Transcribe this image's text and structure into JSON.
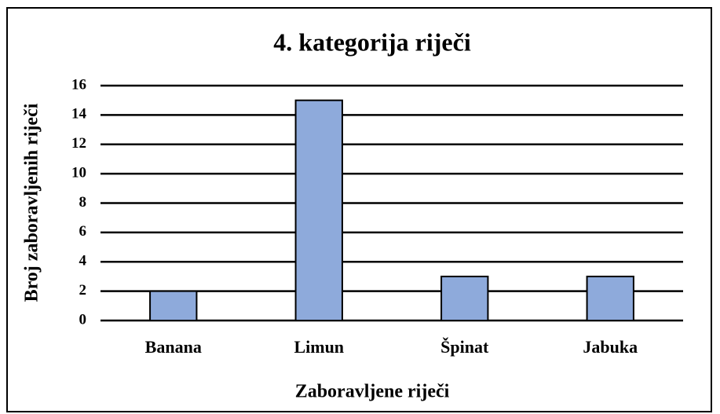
{
  "chart_data": {
    "type": "bar",
    "title": "4. kategorija riječi",
    "x_label": "Zaboravljene riječi",
    "y_label": "Broj zaboravljenih riječi",
    "categories": [
      "Banana",
      "Limun",
      "Špinat",
      "Jabuka"
    ],
    "values": [
      2,
      15,
      3,
      3
    ],
    "color": "#8eaadb",
    "ylim": [
      0,
      16
    ],
    "yticks": [
      0,
      2,
      4,
      6,
      8,
      10,
      12,
      14,
      16
    ],
    "grid": true
  }
}
